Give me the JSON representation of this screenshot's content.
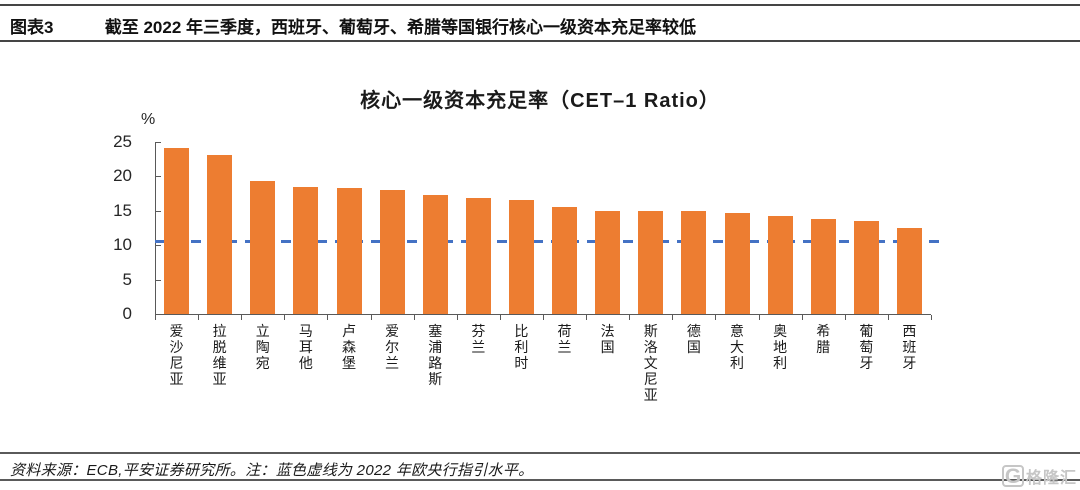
{
  "header": {
    "tag": "图表3",
    "title": "截至 2022 年三季度，西班牙、葡萄牙、希腊等国银行核心一级资本充足率较低"
  },
  "chart_data": {
    "type": "bar",
    "title": "核心一级资本充足率（CET–1 Ratio）",
    "unit_label": "%",
    "xlabel": "",
    "ylabel": "%",
    "categories": [
      "爱沙尼亚",
      "拉脱维亚",
      "立陶宛",
      "马耳他",
      "卢森堡",
      "爱尔兰",
      "塞浦路斯",
      "芬兰",
      "比利时",
      "荷兰",
      "法国",
      "斯洛文尼亚",
      "德国",
      "意大利",
      "奥地利",
      "希腊",
      "葡萄牙",
      "西班牙"
    ],
    "values": [
      24.1,
      23.1,
      19.3,
      18.5,
      18.3,
      18.0,
      17.3,
      16.9,
      16.5,
      15.5,
      14.9,
      14.9,
      14.9,
      14.7,
      14.3,
      13.8,
      13.5,
      12.5
    ],
    "ylim": [
      0,
      25
    ],
    "yticks": [
      0,
      5,
      10,
      15,
      20,
      25
    ],
    "grid": false,
    "legend": "none",
    "bar_color": "#ED7D31",
    "axis_color": "#595959",
    "reference_line": {
      "value": 10.6,
      "style": "dashed",
      "color": "#4472C4",
      "meaning": "2022 年欧央行指引水平"
    }
  },
  "footer": {
    "text": "资料来源：ECB,平安证券研究所。注：蓝色虚线为 2022 年欧央行指引水平。"
  },
  "logo": {
    "icon": "G",
    "text": "格隆汇"
  }
}
